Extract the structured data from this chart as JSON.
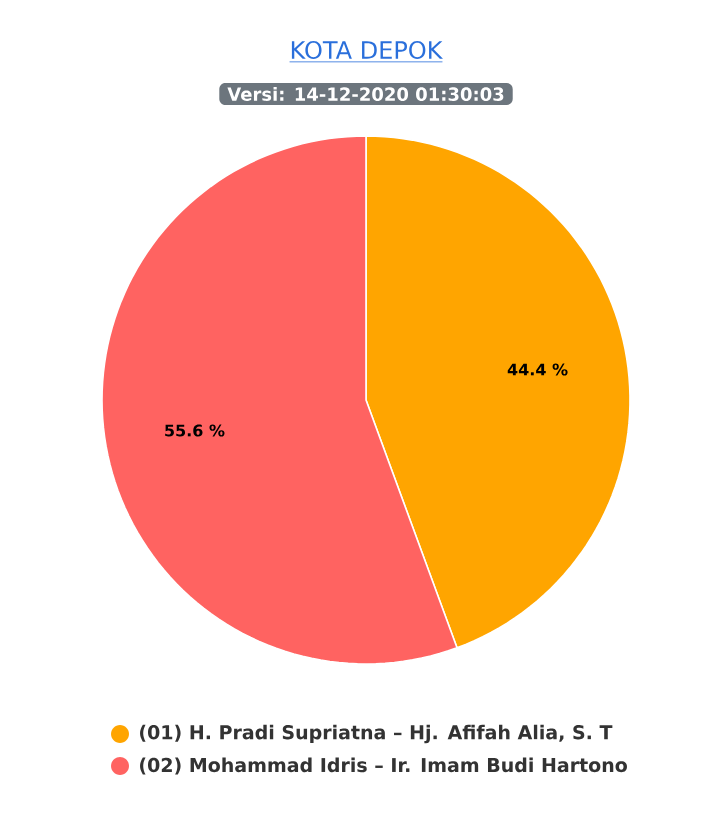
{
  "chart_data": {
    "type": "pie",
    "title": "KOTA DEPOK",
    "subtitle": "Versi: 14-12-2020 01:30:03",
    "categories": [
      "(01) H. Pradi Supriatna – Hj. Afifah Alia, S. T",
      "(02) Mohammad Idris – Ir. Imam Budi Hartono"
    ],
    "values": [
      44.4,
      55.6
    ],
    "value_labels": [
      "44.4 %",
      "55.6 %"
    ],
    "colors": [
      "#ffa500",
      "#ff6361"
    ],
    "legend": "bottom"
  }
}
